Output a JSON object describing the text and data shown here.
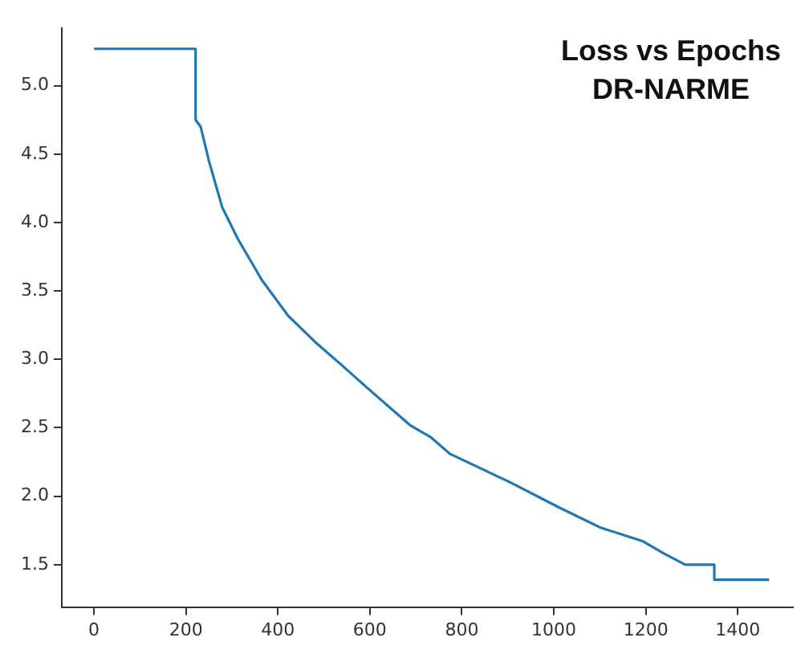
{
  "chart_data": {
    "type": "line",
    "title": "Loss vs Epochs\nDR-NARME",
    "x": [
      0,
      221,
      221,
      232,
      250,
      279,
      313,
      365,
      422,
      480,
      538,
      595,
      687,
      733,
      774,
      906,
      1010,
      1102,
      1194,
      1240,
      1286,
      1349,
      1349,
      1468
    ],
    "series": [
      {
        "color": "#1f77b4",
        "values": [
          5.27,
          5.27,
          4.75,
          4.7,
          4.45,
          4.11,
          3.88,
          3.58,
          3.32,
          3.13,
          2.96,
          2.79,
          2.52,
          2.43,
          2.31,
          2.1,
          1.92,
          1.77,
          1.67,
          1.58,
          1.5,
          1.5,
          1.39,
          1.39
        ]
      }
    ],
    "xlim": [
      -70,
      1520
    ],
    "xticks": [
      0,
      200,
      400,
      600,
      800,
      1000,
      1200,
      1400
    ],
    "ylim": [
      1.19,
      5.42
    ],
    "yticks": [
      {
        "value": 1.5,
        "label": "1.5"
      },
      {
        "value": 2,
        "label": "2.0"
      },
      {
        "value": 2.5,
        "label": "2.5"
      },
      {
        "value": 3,
        "label": "3.0"
      },
      {
        "value": 3.5,
        "label": "3.5"
      },
      {
        "value": 4,
        "label": "4.0"
      },
      {
        "value": 4.5,
        "label": "4.5"
      },
      {
        "value": 5,
        "label": "5.0"
      }
    ],
    "grid": false,
    "legend": false,
    "marker": "none",
    "line_style": "solid"
  }
}
